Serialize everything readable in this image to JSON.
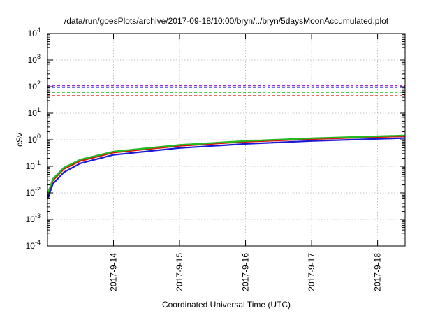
{
  "chart_data": {
    "type": "line",
    "title": "/data/run/goesPlots/archive/2017-09-18/10:00/bryn/../bryn/5daysMoonAccumulated.plot",
    "xlabel": "Coordinated Universal Time (UTC)",
    "ylabel": "cSv",
    "yscale": "log",
    "ylim": [
      0.0001,
      10000
    ],
    "xlim": [
      "2017-09-13 00:00",
      "2017-09-18 10:00"
    ],
    "grid": true,
    "x_ticks": [
      "2017-9-14",
      "2017-9-15",
      "2017-9-16",
      "2017-9-17",
      "2017-9-18"
    ],
    "y_ticks": [
      {
        "value": 0.0001,
        "base": "10",
        "exp": "-4"
      },
      {
        "value": 0.001,
        "base": "10",
        "exp": "-3"
      },
      {
        "value": 0.01,
        "base": "10",
        "exp": "-2"
      },
      {
        "value": 0.1,
        "base": "10",
        "exp": "-1"
      },
      {
        "value": 1,
        "base": "10",
        "exp": "0"
      },
      {
        "value": 10,
        "base": "10",
        "exp": "1"
      },
      {
        "value": 100,
        "base": "10",
        "exp": "2"
      },
      {
        "value": 1000,
        "base": "10",
        "exp": "3"
      },
      {
        "value": 10000,
        "base": "10",
        "exp": "4"
      }
    ],
    "reference_lines": [
      {
        "value": 110,
        "color": "#9b30d0"
      },
      {
        "value": 95,
        "color": "#1a1ad6"
      },
      {
        "value": 62,
        "color": "#22bb22"
      },
      {
        "value": 45,
        "color": "#e01010"
      }
    ],
    "series": [
      {
        "color": "#e01010",
        "x": [
          "2017-09-13 00:00",
          "2017-09-13 02:00",
          "2017-09-13 06:00",
          "2017-09-13 12:00",
          "2017-09-14 00:00",
          "2017-09-15 00:00",
          "2017-09-16 00:00",
          "2017-09-17 00:00",
          "2017-09-18 00:00",
          "2017-09-18 10:00"
        ],
        "y": [
          0.008,
          0.03,
          0.08,
          0.16,
          0.33,
          0.59,
          0.84,
          1.06,
          1.27,
          1.36
        ]
      },
      {
        "color": "#22bb22",
        "x": [
          "2017-09-13 00:00",
          "2017-09-13 02:00",
          "2017-09-13 06:00",
          "2017-09-13 12:00",
          "2017-09-14 00:00",
          "2017-09-15 00:00",
          "2017-09-16 00:00",
          "2017-09-17 00:00",
          "2017-09-18 00:00",
          "2017-09-18 10:00"
        ],
        "y": [
          0.009,
          0.034,
          0.09,
          0.18,
          0.36,
          0.64,
          0.9,
          1.14,
          1.36,
          1.45
        ]
      },
      {
        "color": "#1a1ad6",
        "x": [
          "2017-09-13 00:00",
          "2017-09-13 02:00",
          "2017-09-13 06:00",
          "2017-09-13 12:00",
          "2017-09-14 00:00",
          "2017-09-15 00:00",
          "2017-09-16 00:00",
          "2017-09-17 00:00",
          "2017-09-18 00:00",
          "2017-09-18 10:00"
        ],
        "y": [
          0.006,
          0.022,
          0.06,
          0.13,
          0.27,
          0.49,
          0.7,
          0.9,
          1.08,
          1.16
        ]
      }
    ]
  }
}
